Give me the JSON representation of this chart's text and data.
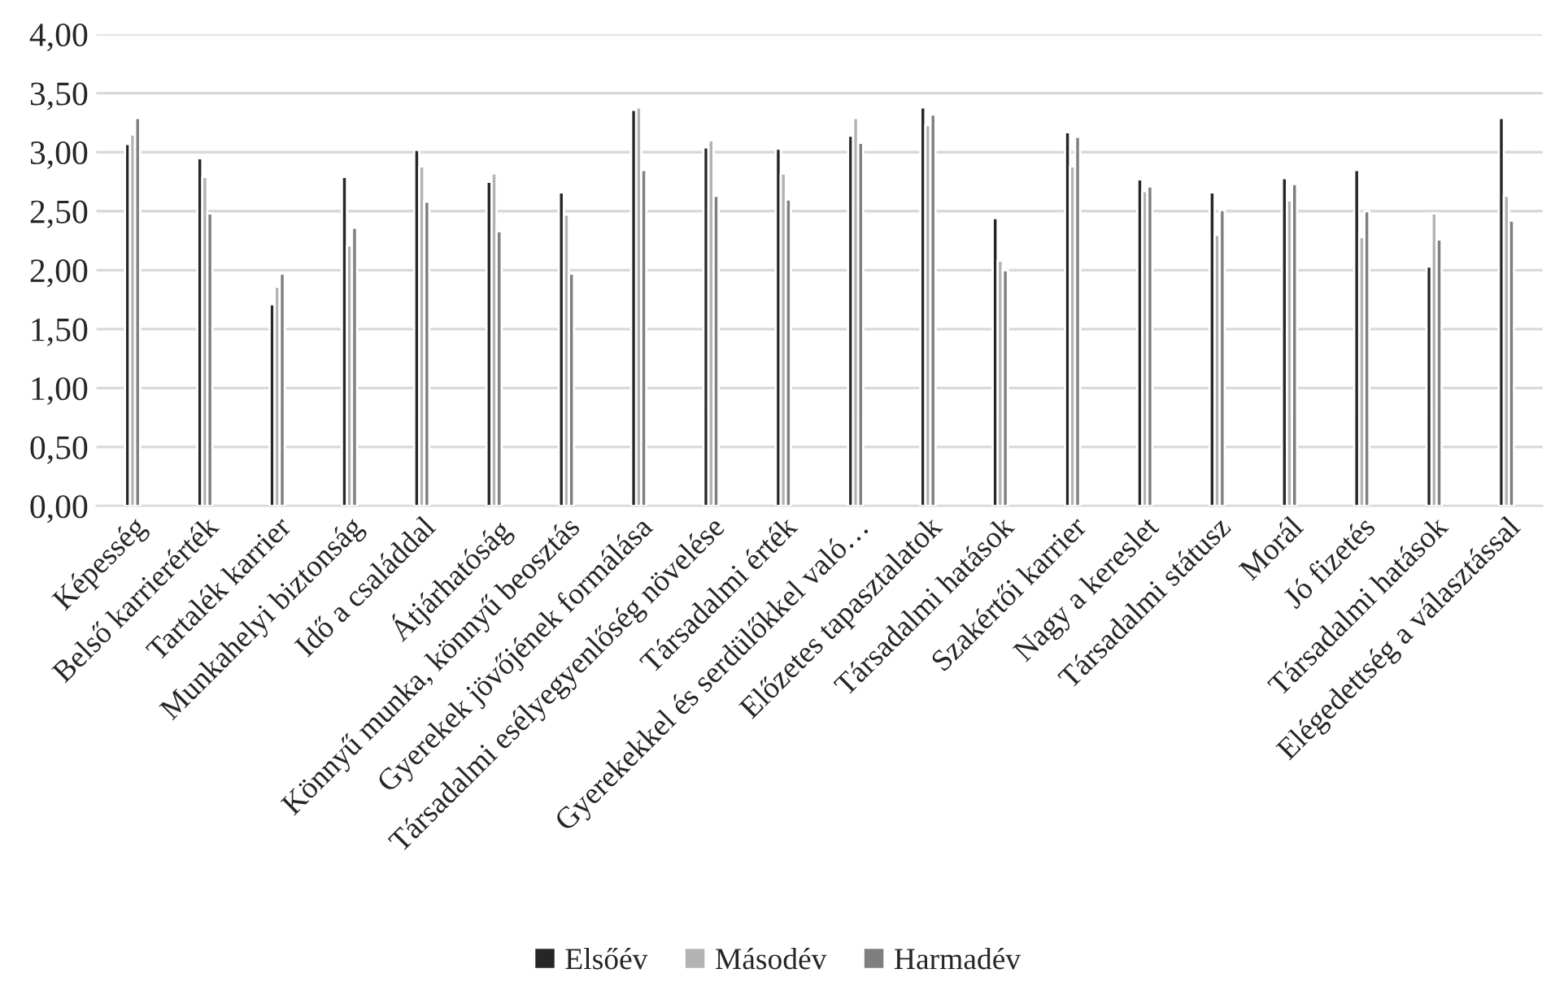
{
  "chart_data": {
    "type": "bar",
    "categories": [
      "Képesség",
      "Belső karrierérték",
      "Tartalék karrier",
      "Munkahelyi biztonság",
      "Idő a családdal",
      "Átjárhatóság",
      "Könnyű munka, könnyű beosztás",
      "Gyerekek jövőjének formálása",
      "Társadalmi esélyegyenlőség növelése",
      "Társadalmi érték",
      "Gyerekekkel és serdülőkkel való…",
      "Előzetes tapasztalatok",
      "Társadalmi hatások",
      "Szakértői karrier",
      "Nagy a kereslet",
      "Társadalmi státusz",
      "Morál",
      "Jó fizetés",
      "Társadalmi hatások",
      "Elégedettség a választással"
    ],
    "series": [
      {
        "name": "Elsőév",
        "color": "#262626",
        "values": [
          3.07,
          2.95,
          1.71,
          2.79,
          3.02,
          2.75,
          2.66,
          3.36,
          3.04,
          3.03,
          3.14,
          3.38,
          2.44,
          3.17,
          2.77,
          2.66,
          2.78,
          2.85,
          2.03,
          3.29
        ]
      },
      {
        "name": "Másodév",
        "color": "#b3b3b3",
        "values": [
          3.15,
          2.79,
          1.86,
          2.21,
          2.88,
          2.82,
          2.47,
          3.38,
          3.1,
          2.82,
          3.29,
          3.23,
          2.08,
          2.88,
          2.67,
          2.3,
          2.59,
          2.28,
          2.48,
          2.63
        ]
      },
      {
        "name": "Harmadév",
        "color": "#7f7f7f",
        "values": [
          3.29,
          2.48,
          1.97,
          2.36,
          2.58,
          2.33,
          1.97,
          2.85,
          2.63,
          2.6,
          3.08,
          3.32,
          2.0,
          3.13,
          2.71,
          2.51,
          2.73,
          2.5,
          2.26,
          2.42
        ]
      }
    ],
    "ylim": [
      0,
      4
    ],
    "yticks": [
      {
        "value": 0,
        "label": "0,00"
      },
      {
        "value": 0.5,
        "label": "0,50"
      },
      {
        "value": 1,
        "label": "1,00"
      },
      {
        "value": 1.5,
        "label": "1,50"
      },
      {
        "value": 2,
        "label": "2,00"
      },
      {
        "value": 2.5,
        "label": "2,50"
      },
      {
        "value": 3,
        "label": "3,00"
      },
      {
        "value": 3.5,
        "label": "3,50"
      },
      {
        "value": 4,
        "label": "4,00"
      }
    ],
    "grid": "y",
    "legend": "bottom"
  }
}
